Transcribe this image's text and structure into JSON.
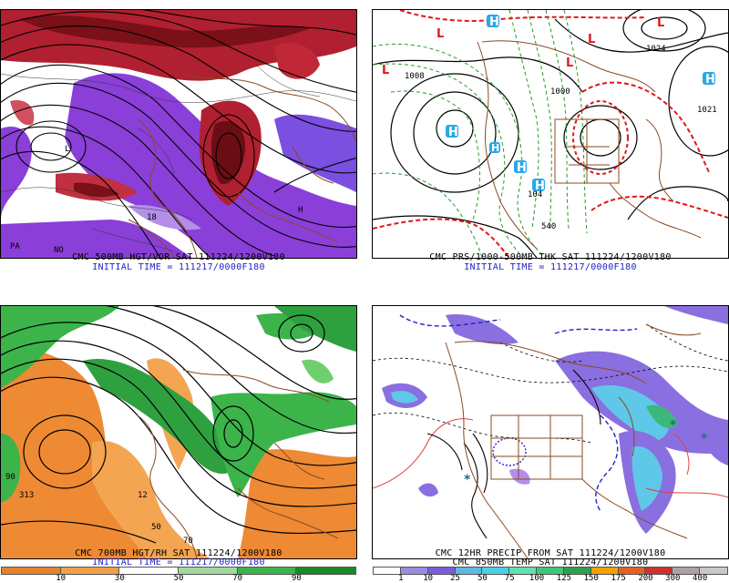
{
  "panels": [
    {
      "id": "p500",
      "caption": "CMC 500MB HGT/VOR SAT 111224/1200V180",
      "initial": "INITIAL TIME = 111217/0000F180",
      "map_labels": [
        "L",
        "H",
        "PA",
        "NO",
        "18"
      ]
    },
    {
      "id": "pprs",
      "caption": "CMC PRS/1000-500MB THK SAT 111224/1200V180",
      "initial": "INITIAL TIME = 111217/0000F180",
      "map_labels": [
        "1008",
        "1000",
        "1024",
        "1021",
        "104",
        "540"
      ],
      "symbols": [
        "L",
        "L",
        "L",
        "L",
        "L",
        "H",
        "H",
        "H",
        "H",
        "H",
        "H"
      ]
    },
    {
      "id": "p700",
      "caption": "CMC 700MB HGT/RH SAT 111224/1200V180",
      "initial": "INITIAL TIME = 111217/0000F180",
      "map_labels": [
        "90",
        "313",
        "50",
        "12",
        "70"
      ],
      "colorbar": {
        "labels": [
          "10",
          "30",
          "50",
          "70",
          "90"
        ],
        "colors": [
          "#e6822d",
          "#f0a04a",
          "#ffffff",
          "#a0d8a0",
          "#3cb44a",
          "#1a8a2a"
        ]
      }
    },
    {
      "id": "pqpf",
      "caption": "CMC 12HR PRECIP FROM SAT 111224/1200V180",
      "initial": "CMC 850MB TEMP SAT 111224/1200V180",
      "map_labels": [
        "*",
        "*",
        "*"
      ],
      "colorbar": {
        "labels": [
          "1",
          "10",
          "25",
          "50",
          "75",
          "100",
          "125",
          "150",
          "175",
          "200",
          "300",
          "400"
        ],
        "colors": [
          "#ffffff",
          "#9b8ce0",
          "#7a5cd8",
          "#5fb8e0",
          "#4ad0e6",
          "#63e0b0",
          "#3cc878",
          "#2ea050",
          "#f4a000",
          "#e86020",
          "#d03030",
          "#b0a0a0",
          "#c8c8c8"
        ]
      }
    }
  ]
}
